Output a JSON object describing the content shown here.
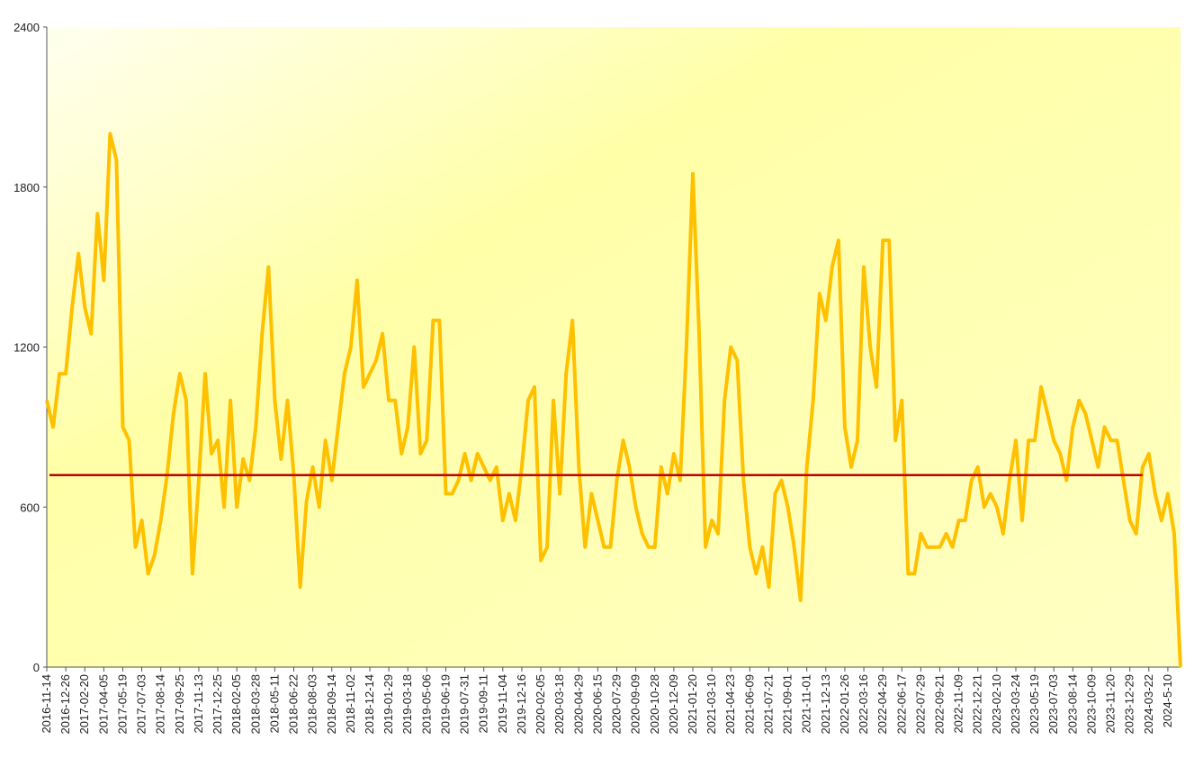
{
  "chart_data": {
    "type": "line",
    "categories": [
      "2016-11-14",
      null,
      null,
      "2016-12-26",
      null,
      null,
      "2017-02-20",
      null,
      null,
      "2017-04-05",
      null,
      null,
      "2017-05-19",
      null,
      null,
      "2017-07-03",
      null,
      null,
      "2017-08-14",
      null,
      null,
      "2017-09-25",
      null,
      null,
      "2017-11-13",
      null,
      null,
      "2017-12-25",
      null,
      null,
      "2018-02-05",
      null,
      null,
      "2018-03-28",
      null,
      null,
      "2018-05-11",
      null,
      null,
      "2018-06-22",
      null,
      null,
      "2018-08-03",
      null,
      null,
      "2018-09-14",
      null,
      null,
      "2018-11-02",
      null,
      null,
      "2018-12-14",
      null,
      null,
      "2019-01-29",
      null,
      null,
      "2019-03-18",
      null,
      null,
      "2019-05-06",
      null,
      null,
      "2019-06-19",
      null,
      null,
      "2019-07-31",
      null,
      null,
      "2019-09-11",
      null,
      null,
      "2019-11-04",
      null,
      null,
      "2019-12-16",
      null,
      null,
      "2020-02-05",
      null,
      null,
      "2020-03-18",
      null,
      null,
      "2020-04-29",
      null,
      null,
      "2020-06-15",
      null,
      null,
      "2020-07-29",
      null,
      null,
      "2020-09-09",
      null,
      null,
      "2020-10-28",
      null,
      null,
      "2020-12-09",
      null,
      null,
      "2021-01-20",
      null,
      null,
      "2021-03-10",
      null,
      null,
      "2021-04-23",
      null,
      null,
      "2021-06-09",
      null,
      null,
      "2021-07-21",
      null,
      null,
      "2021-09-01",
      null,
      null,
      "2021-11-01",
      null,
      null,
      "2021-12-13",
      null,
      null,
      "2022-01-26",
      null,
      null,
      "2022-03-16",
      null,
      null,
      "2022-04-29",
      null,
      null,
      "2022-06-17",
      null,
      null,
      "2022-07-29",
      null,
      null,
      "2022-09-21",
      null,
      null,
      "2022-11-09",
      null,
      null,
      "2022-12-21",
      null,
      null,
      "2023-02-10",
      null,
      null,
      "2023-03-24",
      null,
      null,
      "2023-05-19",
      null,
      null,
      "2023-07-03",
      null,
      null,
      "2023-08-14",
      null,
      null,
      "2023-10-09",
      null,
      null,
      "2023-11-20",
      null,
      null,
      "2023-12-29",
      null,
      null,
      "2024-03-22",
      null,
      null,
      "2024-5-10",
      null,
      null
    ],
    "values": [
      1000,
      900,
      1100,
      1100,
      1350,
      1550,
      1350,
      1250,
      1700,
      1450,
      2000,
      1900,
      900,
      850,
      450,
      550,
      350,
      420,
      550,
      720,
      950,
      1100,
      1000,
      350,
      700,
      1100,
      800,
      850,
      600,
      1000,
      600,
      780,
      700,
      900,
      1250,
      1500,
      1000,
      780,
      1000,
      720,
      300,
      620,
      750,
      600,
      850,
      700,
      900,
      1100,
      1200,
      1450,
      1050,
      1100,
      1150,
      1250,
      1000,
      1000,
      800,
      900,
      1200,
      800,
      850,
      1300,
      1300,
      650,
      650,
      700,
      800,
      700,
      800,
      750,
      700,
      750,
      550,
      650,
      550,
      750,
      1000,
      1050,
      400,
      450,
      1000,
      650,
      1100,
      1300,
      750,
      450,
      650,
      550,
      450,
      450,
      700,
      850,
      750,
      600,
      500,
      450,
      450,
      750,
      650,
      800,
      700,
      1200,
      1850,
      1250,
      450,
      550,
      500,
      1000,
      1200,
      1150,
      700,
      450,
      350,
      450,
      300,
      650,
      700,
      600,
      450,
      250,
      750,
      1000,
      1400,
      1300,
      1500,
      1600,
      900,
      750,
      850,
      1500,
      1200,
      1050,
      1600,
      1600,
      850,
      1000,
      350,
      350,
      500,
      450,
      450,
      450,
      500,
      450,
      550,
      550,
      700,
      750,
      600,
      650,
      600,
      500,
      700,
      850,
      550,
      850,
      850,
      1050,
      950,
      850,
      800,
      700,
      900,
      1000,
      950,
      850,
      750,
      900,
      850,
      850,
      700,
      550,
      500,
      750,
      800,
      650,
      550,
      650,
      500,
      0
    ],
    "color": "#ffc000",
    "reference_line": {
      "value": 720,
      "color": "#c00000"
    },
    "ylim": [
      0,
      2400
    ],
    "yticks": [
      0,
      600,
      1200,
      1800,
      2400
    ]
  }
}
